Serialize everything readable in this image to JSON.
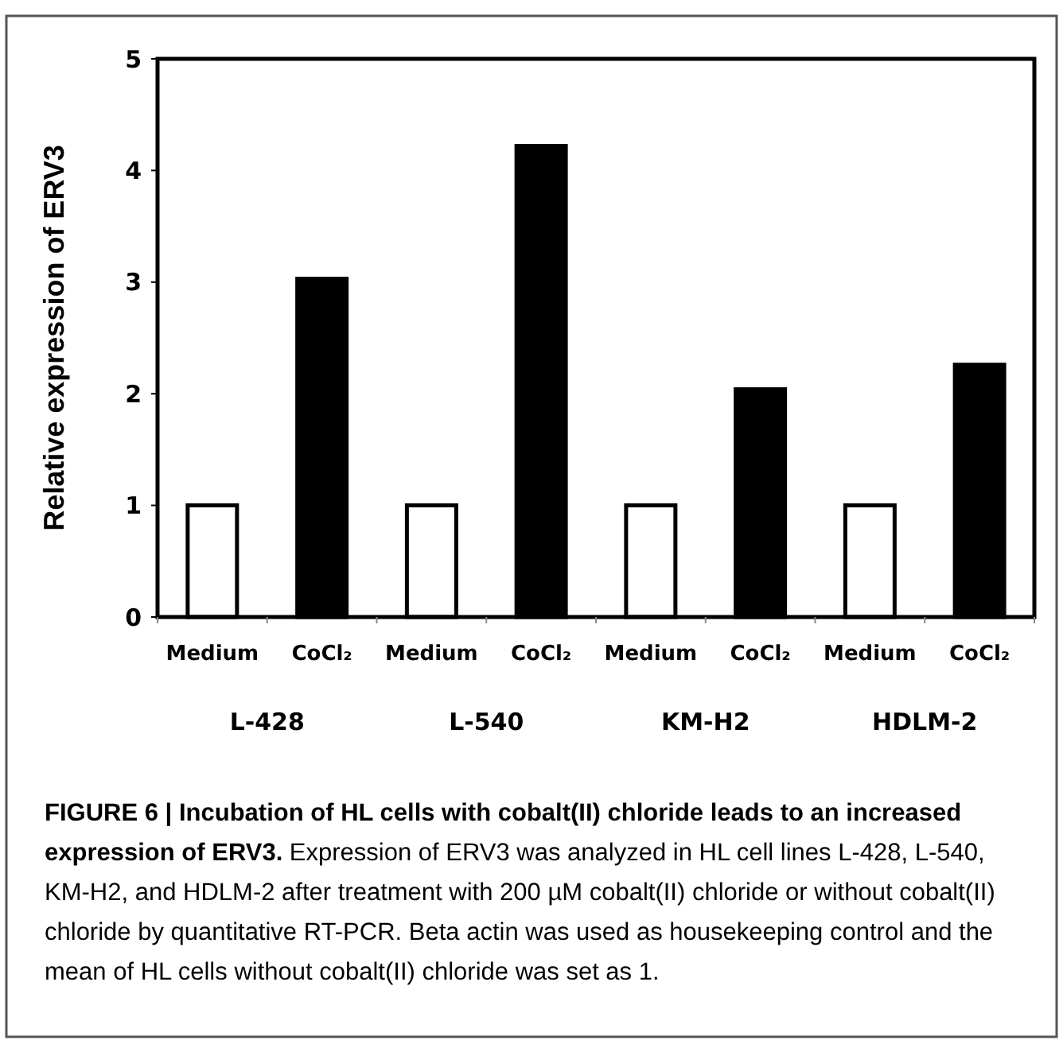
{
  "chart_data": {
    "type": "bar",
    "title": "FIGURE 6 | Incubation of HL cells with cobalt(II) chloride leads to an increased expression of ERV3.",
    "subtitle": "Expression of ERV3 was analyzed in HL cell lines L-428, L-540, KM-H2, and HDLM-2 after treatment with 200 µM cobalt(II) chloride or without cobalt(II) chloride by quantitative RT-PCR. Beta actin was used as housekeeping control and the mean of HL cells without cobalt(II) chloride was set as 1.",
    "ylabel": "Relative expression of ERV3",
    "categories": [
      "Medium",
      "CoCl₂",
      "Medium",
      "CoCl₂",
      "Medium",
      "CoCl₂",
      "Medium",
      "CoCl₂"
    ],
    "values": [
      1,
      3.03,
      1,
      4.22,
      1,
      2.04,
      1,
      2.26
    ],
    "colors": [
      "#ffffff",
      "#000000",
      "#ffffff",
      "#000000",
      "#ffffff",
      "#000000",
      "#ffffff",
      "#000000"
    ],
    "annotations": [
      "L-428",
      "L-540",
      "KM-H2",
      "HDLM-2"
    ],
    "ylim": [
      0,
      5
    ],
    "yticks": [
      0,
      1,
      2,
      3,
      4,
      5
    ],
    "grid": false
  }
}
